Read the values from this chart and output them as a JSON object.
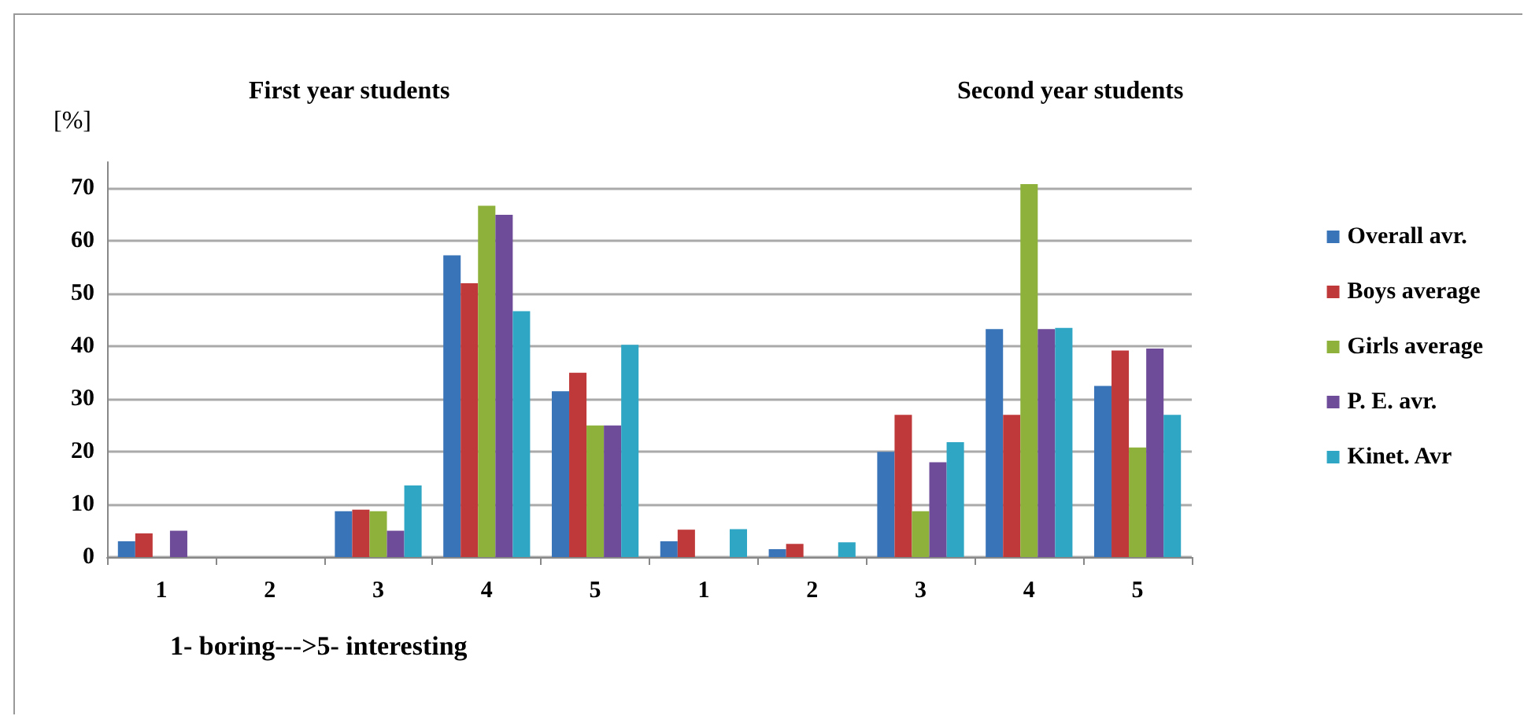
{
  "chart_data": {
    "type": "bar",
    "ylabel": "[%]",
    "xlabel": "1- boring--->5- interesting",
    "annotations": [
      "First year students",
      "Second year students"
    ],
    "categories": [
      "1",
      "2",
      "3",
      "4",
      "5",
      "1",
      "2",
      "3",
      "4",
      "5"
    ],
    "series": [
      {
        "name": "Overall avr.",
        "color": "#3a74b8",
        "values": [
          3,
          0,
          8.7,
          57.3,
          31.5,
          3,
          1.5,
          20,
          43.3,
          32.5
        ]
      },
      {
        "name": "Boys average",
        "color": "#c0393a",
        "values": [
          4.5,
          0,
          9,
          52,
          35,
          5.2,
          2.5,
          27,
          27,
          39.2
        ]
      },
      {
        "name": "Girls average",
        "color": "#8db13a",
        "values": [
          0,
          0,
          8.7,
          66.7,
          25,
          0,
          0,
          8.7,
          70.8,
          20.8
        ]
      },
      {
        "name": "P. E. avr.",
        "color": "#6e4c9a",
        "values": [
          5,
          0,
          5,
          65,
          25,
          0,
          0,
          18,
          43.3,
          39.6
        ]
      },
      {
        "name": "Kinet. Avr",
        "color": "#2fa6c4",
        "values": [
          0,
          0,
          13.6,
          46.7,
          40.3,
          5.3,
          2.8,
          21.8,
          43.5,
          27
        ]
      }
    ],
    "ylim": [
      0,
      75
    ],
    "yticks": [
      0,
      10,
      20,
      30,
      40,
      50,
      60,
      70
    ],
    "grid": "y",
    "legend": "right"
  }
}
